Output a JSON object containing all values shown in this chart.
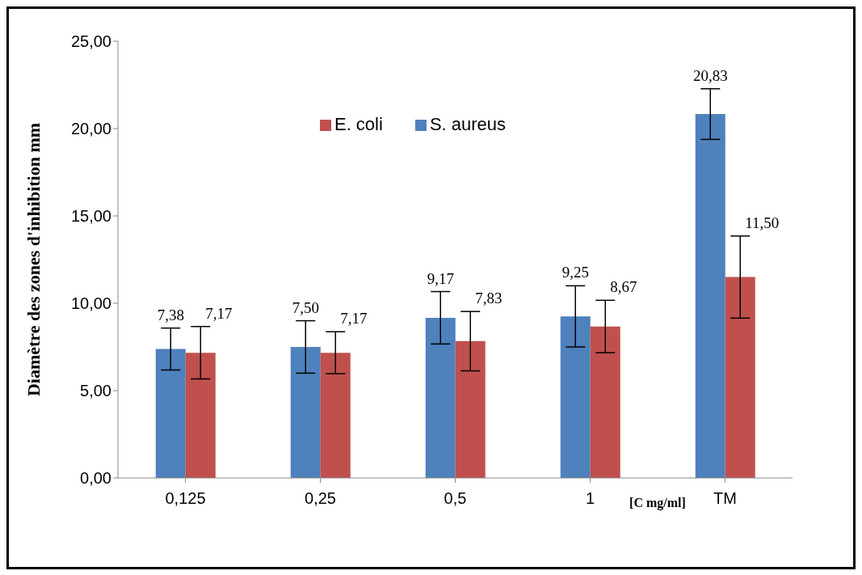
{
  "chart_data": {
    "type": "bar",
    "ylabel": "Diamètre des zones d'inhibition  mm",
    "xlabel": "[C mg/ml]",
    "categories": [
      "0,125",
      "0,25",
      "0,5",
      "1",
      "TM"
    ],
    "series": [
      {
        "name": "S. aureus",
        "color": "#4f81bd",
        "values": [
          7.38,
          7.5,
          9.17,
          9.25,
          20.83
        ],
        "errors": [
          1.2,
          1.5,
          1.5,
          1.75,
          1.45
        ],
        "value_labels": [
          "7,38",
          "7,50",
          "9,17",
          "9,25",
          "20,83"
        ]
      },
      {
        "name": "E. coli",
        "color": "#c0504d",
        "values": [
          7.17,
          7.17,
          7.83,
          8.67,
          11.5
        ],
        "errors": [
          1.5,
          1.2,
          1.7,
          1.5,
          2.35
        ],
        "value_labels": [
          "7,17",
          "7,17",
          "7,83",
          "8,67",
          "11,50"
        ]
      }
    ],
    "ylim": [
      0,
      25
    ],
    "yticks": [
      {
        "value": 0,
        "label": "0,00"
      },
      {
        "value": 5,
        "label": "5,00"
      },
      {
        "value": 10,
        "label": "10,00"
      },
      {
        "value": 15,
        "label": "15,00"
      },
      {
        "value": 20,
        "label": "20,00"
      },
      {
        "value": 25,
        "label": "25,00"
      }
    ],
    "grid": false,
    "legend": "top"
  }
}
